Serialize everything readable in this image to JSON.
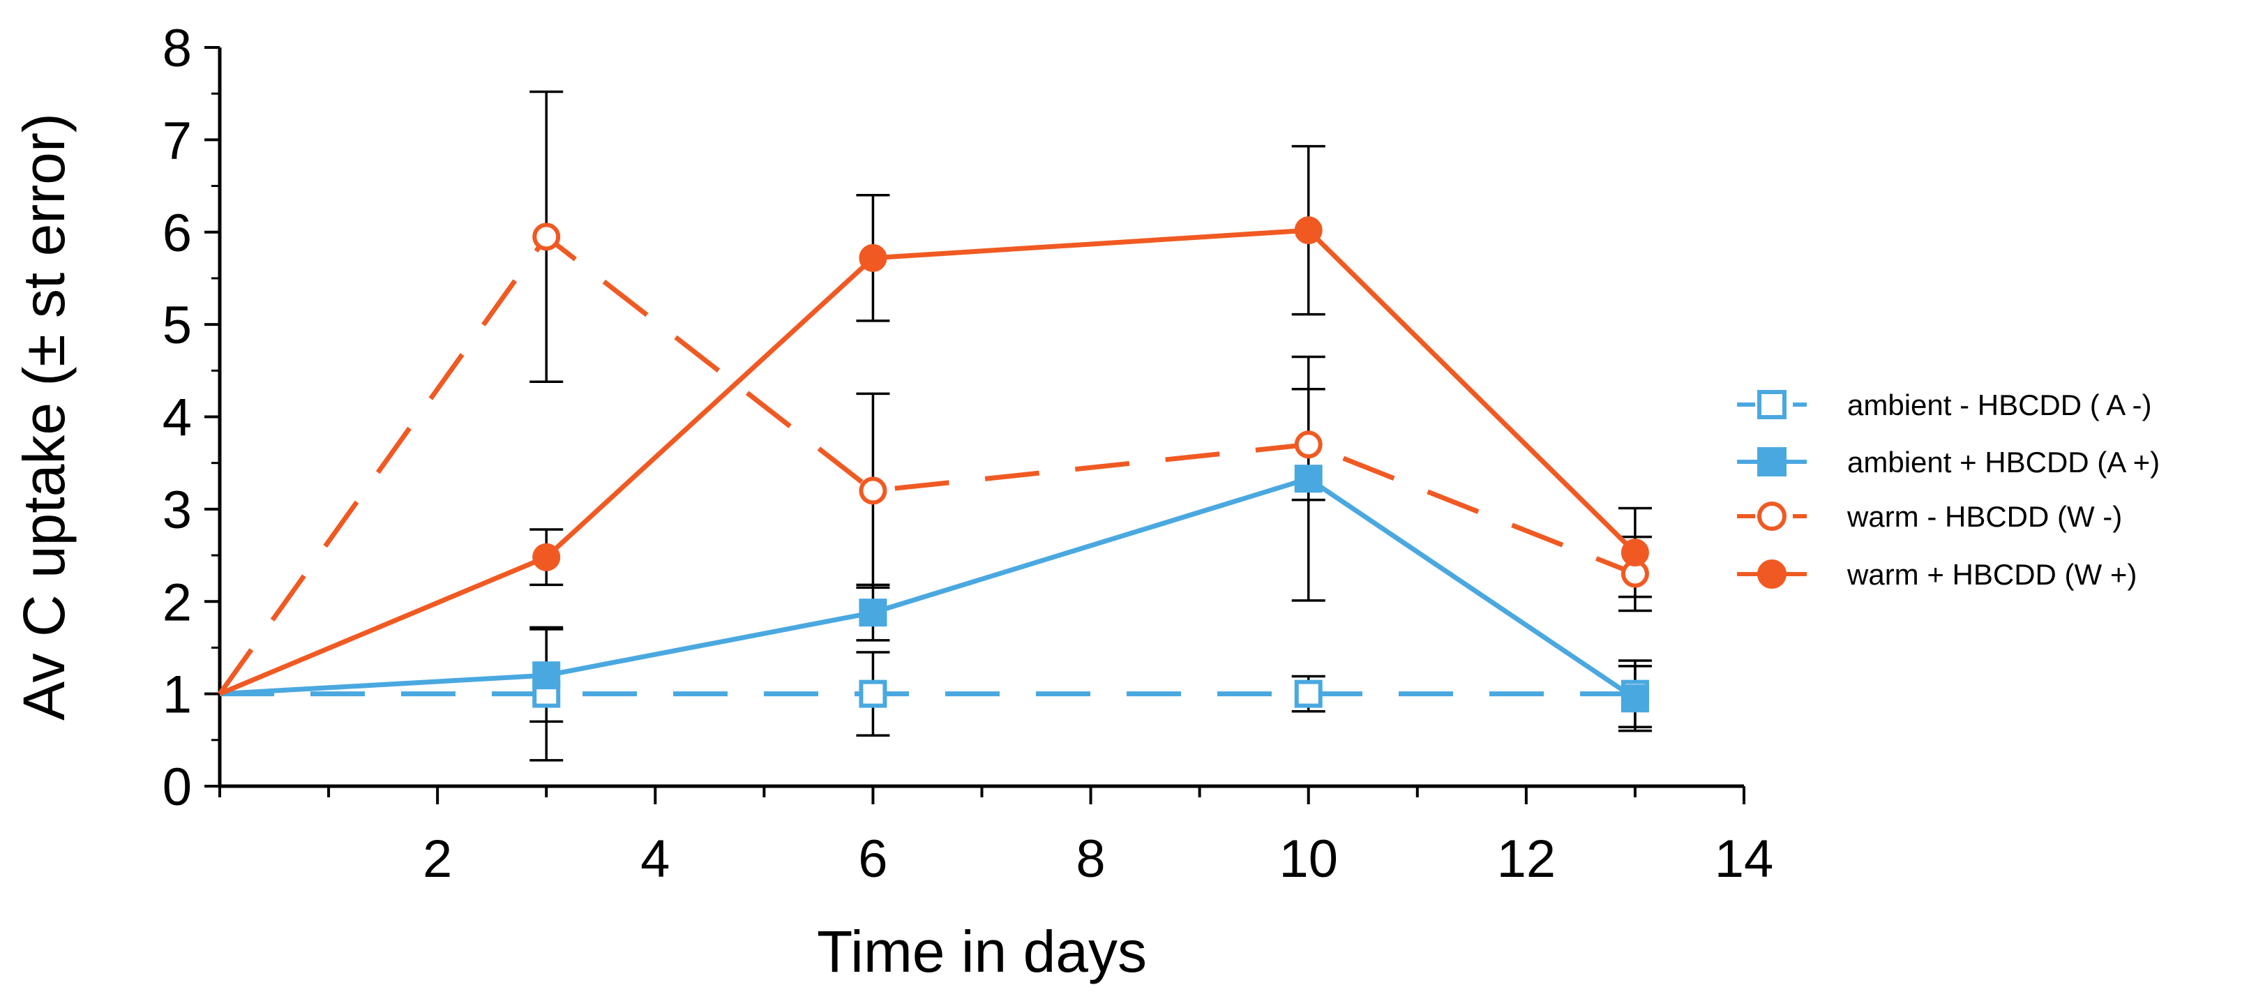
{
  "chart_data": {
    "type": "line",
    "title": "",
    "xlabel": "Time in days",
    "ylabel": "Av C uptake (± st error)",
    "xlim": [
      0,
      14
    ],
    "ylim": [
      0,
      8
    ],
    "xticks": [
      2,
      4,
      6,
      8,
      10,
      12,
      14
    ],
    "yticks": [
      0,
      1,
      2,
      3,
      4,
      5,
      6,
      7,
      8
    ],
    "legend_position": "right",
    "grid": false,
    "series": [
      {
        "name": "ambient - HBCDD ( A -)",
        "x": [
          0,
          3,
          6,
          10,
          13
        ],
        "y": [
          1,
          1,
          1,
          1,
          1
        ],
        "err": [
          0,
          0.72,
          0.45,
          0.19,
          0.36
        ],
        "color": "#4aa8e0",
        "line": "dashed",
        "marker": "square-open"
      },
      {
        "name": "ambient + HBCDD (A +)",
        "x": [
          0,
          3,
          6,
          10,
          13
        ],
        "y": [
          1,
          1.2,
          1.88,
          3.33,
          0.95
        ],
        "err": [
          0,
          0.5,
          0.3,
          1.32,
          0.35
        ],
        "color": "#4aa8e0",
        "line": "solid",
        "marker": "square-filled"
      },
      {
        "name": "warm - HBCDD (W -)",
        "x": [
          0,
          3,
          6,
          10,
          13
        ],
        "y": [
          1,
          5.95,
          3.2,
          3.7,
          2.3
        ],
        "err": [
          0,
          1.57,
          1.05,
          0.6,
          0.4
        ],
        "color": "#f05a22",
        "line": "dashed",
        "marker": "circle-open"
      },
      {
        "name": "warm + HBCDD (W +)",
        "x": [
          0,
          3,
          6,
          10,
          13
        ],
        "y": [
          1,
          2.48,
          5.72,
          6.02,
          2.53
        ],
        "err": [
          0,
          0.3,
          0.68,
          0.91,
          0.48
        ],
        "color": "#f05a22",
        "line": "solid",
        "marker": "circle-filled"
      }
    ]
  }
}
